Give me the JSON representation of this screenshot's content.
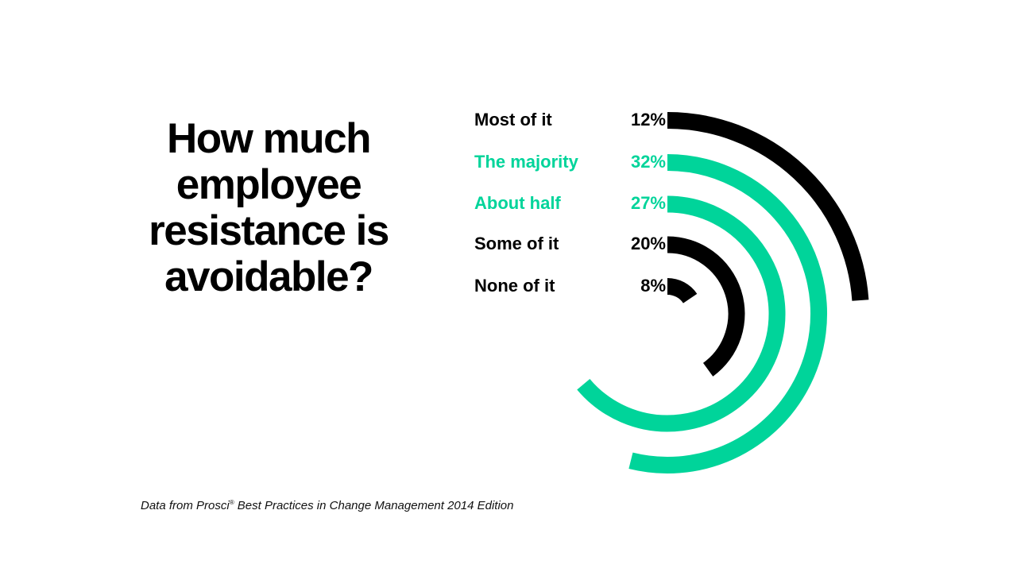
{
  "chart_data": {
    "type": "radial-bar",
    "title": "How much employee resistance is avoidable?",
    "categories": [
      "Most of it",
      "The majority",
      "About half",
      "Some of it",
      "None of it"
    ],
    "values": [
      12,
      32,
      27,
      20,
      8
    ],
    "value_labels": [
      "12%",
      "32%",
      "27%",
      "20%",
      "8%"
    ],
    "colors": [
      "#000000",
      "#00d49a",
      "#00d49a",
      "#000000",
      "#000000"
    ],
    "legend": "inline-left"
  },
  "source": {
    "prefix": "Data from Prosci",
    "mark": "®",
    "suffix": " Best Practices in Change Management 2014 Edition"
  }
}
